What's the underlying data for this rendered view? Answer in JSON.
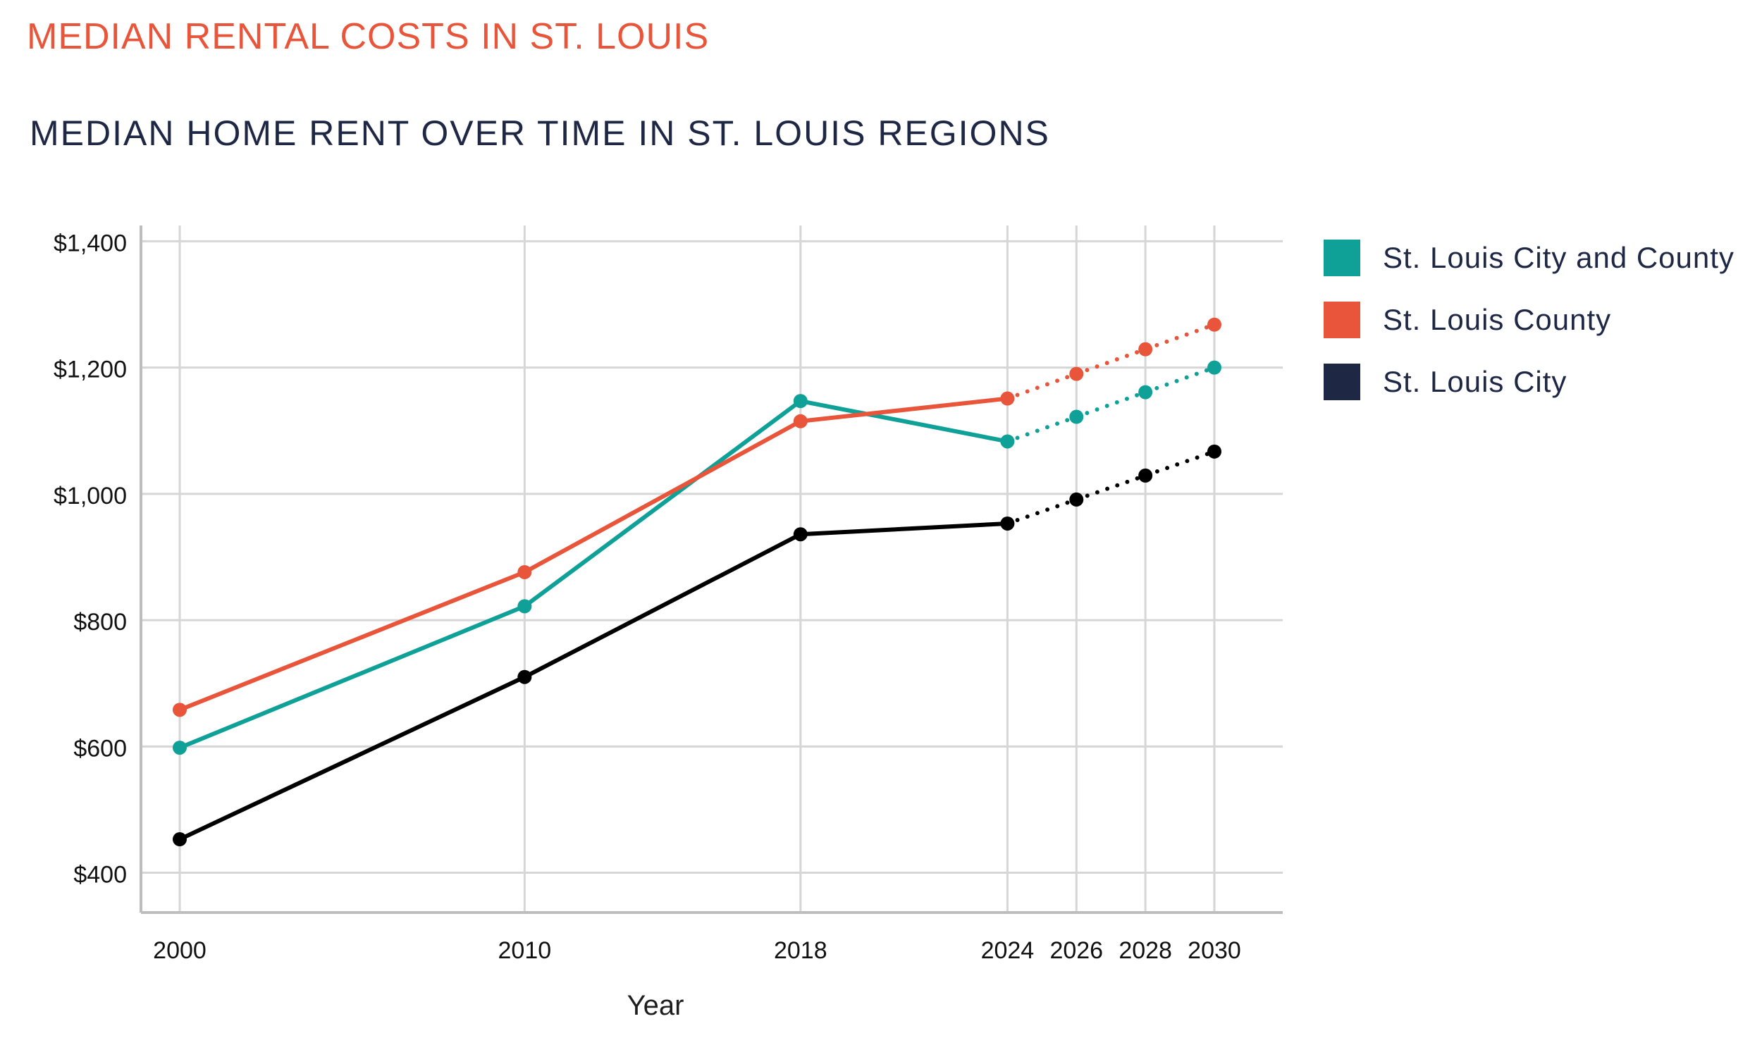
{
  "page": {
    "eyebrow": "MEDIAN RENTAL COSTS IN ST. LOUIS",
    "headline": "MEDIAN HOME RENT OVER TIME IN ST. LOUIS REGIONS"
  },
  "chart_data": {
    "type": "line",
    "title": "MEDIAN HOME RENT OVER TIME IN ST. LOUIS REGIONS",
    "xlabel": "Year",
    "ylabel": "",
    "x": [
      2000,
      2010,
      2018,
      2024,
      2026,
      2028,
      2030
    ],
    "x_tick_labels": [
      "2000",
      "2010",
      "2018",
      "2024",
      "2026",
      "2028",
      "2030"
    ],
    "y_ticks": [
      400,
      600,
      800,
      1000,
      1200,
      1400
    ],
    "y_tick_labels": [
      "$400",
      "$600",
      "$800",
      "$1,000",
      "$1,200",
      "$1,400"
    ],
    "xlim": [
      1999,
      2032
    ],
    "ylim": [
      337,
      1425
    ],
    "grid": true,
    "legend_position": "right",
    "projected_from_x": 2024,
    "projection_style": "dotted",
    "series": [
      {
        "name": "St. Louis City and County",
        "color": "#0fa197",
        "legend_color": "#0fa197",
        "values": [
          598,
          822,
          1147,
          1083,
          1122,
          1161,
          1200
        ]
      },
      {
        "name": "St. Louis County",
        "color": "#e8553a",
        "legend_color": "#e8553a",
        "values": [
          658,
          876,
          1115,
          1151,
          1190,
          1229,
          1268
        ]
      },
      {
        "name": "St. Louis City",
        "color": "#000000",
        "legend_color": "#1e2744",
        "values": [
          453,
          710,
          936,
          953,
          991,
          1029,
          1067
        ]
      }
    ]
  }
}
